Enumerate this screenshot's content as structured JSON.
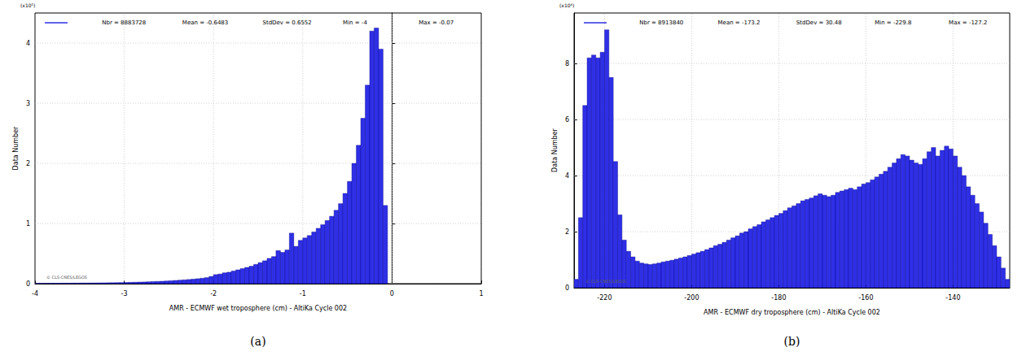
{
  "chart_data": [
    {
      "type": "histogram",
      "panel_label": "(a)",
      "annotations": [
        "Nbr = 8883728",
        "Mean = -0.6483",
        "StdDev = 0.6552",
        "Min = -4",
        "Max = -0.07"
      ],
      "watermark": "© CLS-CNES/LEGOS",
      "xlabel": "AMR - ECMWF wet troposphere (cm) - AltiKa Cycle 002",
      "ylabel": "Data Number",
      "y_scale_label": "(x10⁵)",
      "color": "#2f2fe6",
      "grid": true,
      "xlim": [
        -4,
        1
      ],
      "xticks": [
        -4,
        -3,
        -2,
        -1,
        0,
        1
      ],
      "ylim": [
        0,
        4.5
      ],
      "yticks": [
        0,
        1,
        2,
        3,
        4
      ],
      "bins": [
        -4,
        -3.95,
        -3.9,
        -3.85,
        -3.8,
        -3.75,
        -3.7,
        -3.65,
        -3.6,
        -3.55,
        -3.5,
        -3.45,
        -3.4,
        -3.35,
        -3.3,
        -3.25,
        -3.2,
        -3.15,
        -3.1,
        -3.05,
        -3,
        -2.95,
        -2.9,
        -2.85,
        -2.8,
        -2.75,
        -2.7,
        -2.65,
        -2.6,
        -2.55,
        -2.5,
        -2.45,
        -2.4,
        -2.35,
        -2.3,
        -2.25,
        -2.2,
        -2.15,
        -2.1,
        -2.05,
        -2,
        -1.95,
        -1.9,
        -1.85,
        -1.8,
        -1.75,
        -1.7,
        -1.65,
        -1.6,
        -1.55,
        -1.5,
        -1.45,
        -1.4,
        -1.35,
        -1.3,
        -1.25,
        -1.2,
        -1.15,
        -1.1,
        -1.05,
        -1,
        -0.95,
        -0.9,
        -0.85,
        -0.8,
        -0.75,
        -0.7,
        -0.65,
        -0.6,
        -0.55,
        -0.5,
        -0.45,
        -0.4,
        -0.35,
        -0.3,
        -0.25,
        -0.2,
        -0.15,
        -0.1,
        -0.05
      ],
      "values": [
        0.005,
        0.005,
        0.006,
        0.006,
        0.007,
        0.007,
        0.008,
        0.008,
        0.009,
        0.009,
        0.01,
        0.01,
        0.011,
        0.012,
        0.013,
        0.014,
        0.015,
        0.016,
        0.017,
        0.018,
        0.02,
        0.022,
        0.024,
        0.026,
        0.028,
        0.031,
        0.034,
        0.037,
        0.04,
        0.044,
        0.048,
        0.053,
        0.058,
        0.063,
        0.069,
        0.075,
        0.082,
        0.09,
        0.1,
        0.12,
        0.15,
        0.16,
        0.18,
        0.19,
        0.21,
        0.23,
        0.25,
        0.27,
        0.29,
        0.32,
        0.35,
        0.38,
        0.42,
        0.45,
        0.55,
        0.52,
        0.56,
        0.84,
        0.62,
        0.72,
        0.76,
        0.8,
        0.86,
        0.92,
        0.98,
        1.05,
        1.12,
        1.22,
        1.33,
        1.5,
        1.7,
        2.0,
        2.3,
        2.75,
        3.3,
        4.2,
        4.25,
        3.9,
        1.3
      ]
    },
    {
      "type": "histogram",
      "panel_label": "(b)",
      "annotations": [
        "Nbr = 8913840",
        "Mean = -173.2",
        "StdDev = 30.48",
        "Min = -229.8",
        "Max = -127.2"
      ],
      "watermark": "© CLS-CNES/LEGOS",
      "xlabel": "AMR - ECMWF dry troposphere (cm) - AltiKa Cycle 002",
      "ylabel": "Data Number",
      "y_scale_label": "(x10⁴)",
      "color": "#2f2fe6",
      "grid": true,
      "xlim": [
        -227,
        -127
      ],
      "xticks": [
        -220,
        -200,
        -180,
        -160,
        -140
      ],
      "ylim": [
        0,
        9.8
      ],
      "yticks": [
        0,
        2,
        4,
        6,
        8
      ],
      "bins": [
        -227,
        -226,
        -225,
        -224,
        -223,
        -222,
        -221,
        -220,
        -219,
        -218,
        -217,
        -216,
        -215,
        -214,
        -213,
        -212,
        -211,
        -210,
        -209,
        -208,
        -207,
        -206,
        -205,
        -204,
        -203,
        -202,
        -201,
        -200,
        -199,
        -198,
        -197,
        -196,
        -195,
        -194,
        -193,
        -192,
        -191,
        -190,
        -189,
        -188,
        -187,
        -186,
        -185,
        -184,
        -183,
        -182,
        -181,
        -180,
        -179,
        -178,
        -177,
        -176,
        -175,
        -174,
        -173,
        -172,
        -171,
        -170,
        -169,
        -168,
        -167,
        -166,
        -165,
        -164,
        -163,
        -162,
        -161,
        -160,
        -159,
        -158,
        -157,
        -156,
        -155,
        -154,
        -153,
        -152,
        -151,
        -150,
        -149,
        -148,
        -147,
        -146,
        -145,
        -144,
        -143,
        -142,
        -141,
        -140,
        -139,
        -138,
        -137,
        -136,
        -135,
        -134,
        -133,
        -132,
        -131,
        -130,
        -129,
        -128,
        -127
      ],
      "values": [
        0.3,
        2.5,
        6.5,
        8.2,
        8.3,
        8.2,
        8.4,
        9.2,
        7.5,
        4.5,
        2.6,
        1.7,
        1.3,
        1.1,
        0.95,
        0.88,
        0.85,
        0.83,
        0.85,
        0.88,
        0.92,
        0.95,
        0.98,
        1.02,
        1.06,
        1.1,
        1.15,
        1.2,
        1.25,
        1.3,
        1.36,
        1.42,
        1.5,
        1.55,
        1.62,
        1.7,
        1.78,
        1.85,
        1.95,
        2.0,
        2.1,
        2.18,
        2.25,
        2.35,
        2.42,
        2.5,
        2.58,
        2.65,
        2.75,
        2.85,
        2.92,
        3.0,
        3.1,
        3.15,
        3.2,
        3.28,
        3.35,
        3.3,
        3.25,
        3.3,
        3.4,
        3.45,
        3.5,
        3.55,
        3.5,
        3.6,
        3.7,
        3.75,
        3.85,
        3.95,
        4.05,
        4.15,
        4.3,
        4.45,
        4.6,
        4.75,
        4.7,
        4.55,
        4.45,
        4.4,
        4.6,
        4.85,
        5.0,
        4.7,
        4.9,
        5.05,
        4.95,
        4.7,
        4.3,
        4.0,
        3.6,
        3.3,
        3.0,
        2.7,
        2.3,
        1.9,
        1.5,
        1.1,
        0.7,
        0.3
      ]
    }
  ]
}
